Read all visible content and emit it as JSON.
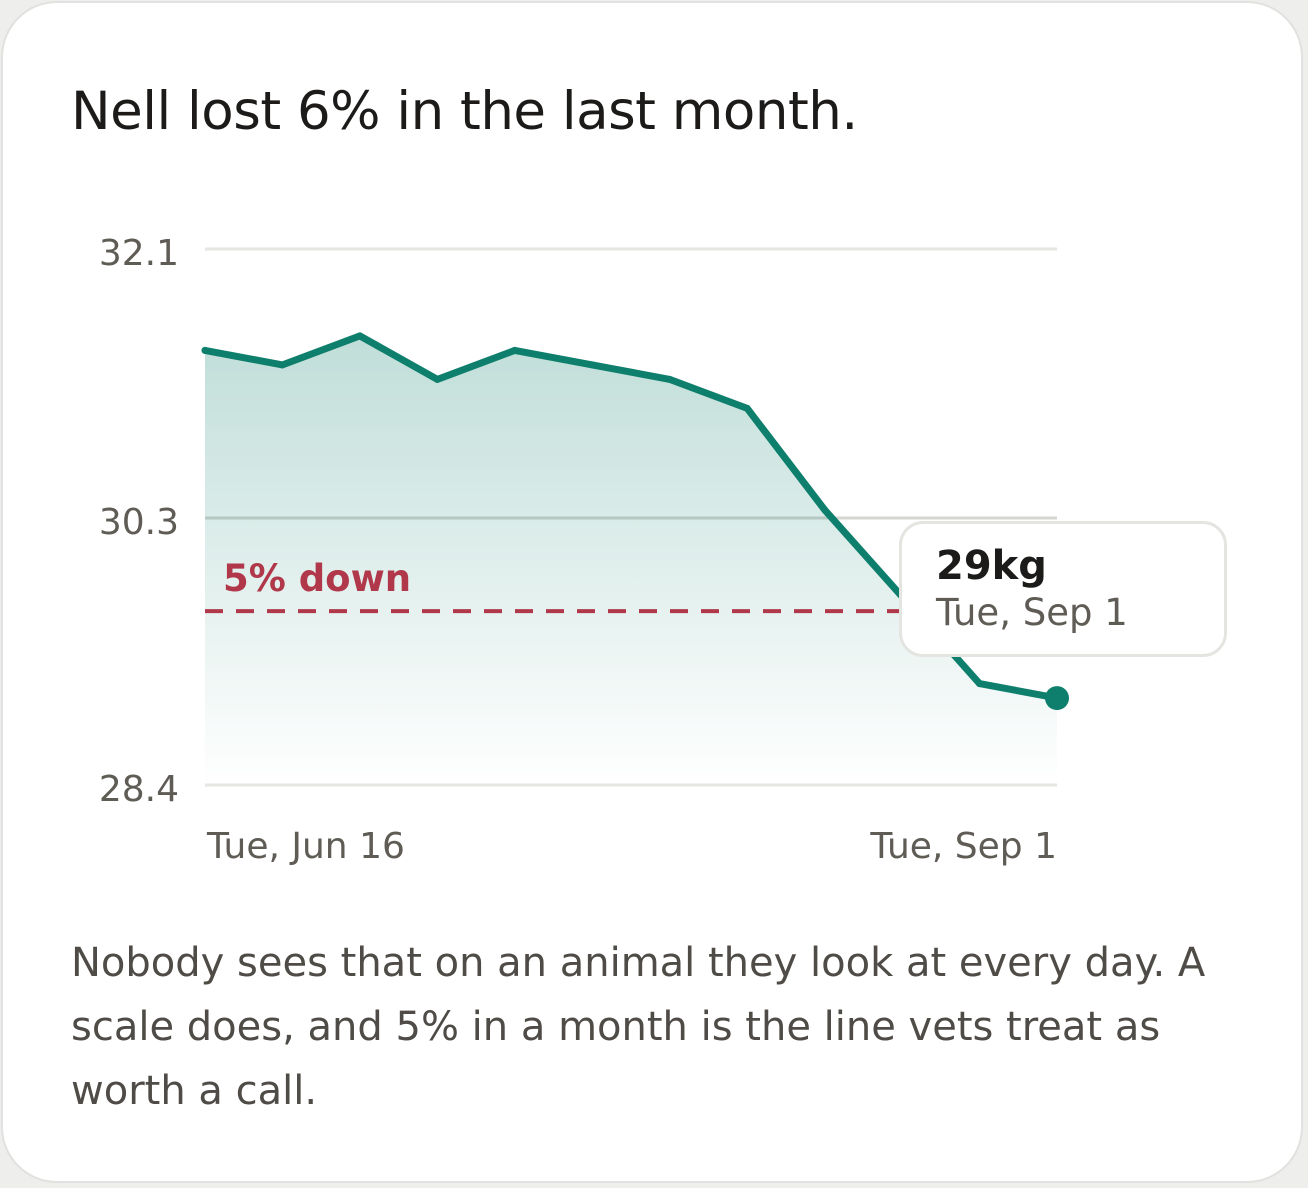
{
  "card": {
    "headline": "Nell lost 6% in the last month.",
    "body": "Nobody sees that on an animal they look at every day. A scale does, and 5% in a month is the line vets treat as worth a call."
  },
  "colors": {
    "line": "#0e7f6c",
    "reference": "#b0384a",
    "gridline": "#e3e3e0",
    "headline": "#1c1b19",
    "muted_text": "#5f5c56"
  },
  "chart_data": {
    "type": "area",
    "title": "",
    "xlabel": "",
    "ylabel": "",
    "y_unit": "kg",
    "ylim": [
      28.4,
      32.1
    ],
    "y_ticks": [
      "32.1",
      "30.3",
      "28.4"
    ],
    "x_tick_labels": [
      "Tue, Jun 16",
      "Tue, Sep 1"
    ],
    "grid": "horizontal",
    "legend": "none",
    "series": [
      {
        "x": [
          "Jun 16",
          "Jun 23",
          "Jun 30",
          "Jul 7",
          "Jul 14",
          "Jul 21",
          "Jul 28",
          "Aug 4",
          "Aug 11",
          "Aug 18",
          "Aug 25",
          "Sep 1"
        ],
        "values": [
          31.4,
          31.3,
          31.5,
          31.2,
          31.4,
          31.3,
          31.2,
          31.0,
          30.3,
          29.7,
          29.1,
          29.0
        ]
      }
    ],
    "reference_line": {
      "value": 29.6,
      "label": "5% down"
    },
    "highlight": {
      "index": 11,
      "value_label": "29kg",
      "date_label": "Tue, Sep 1"
    }
  }
}
